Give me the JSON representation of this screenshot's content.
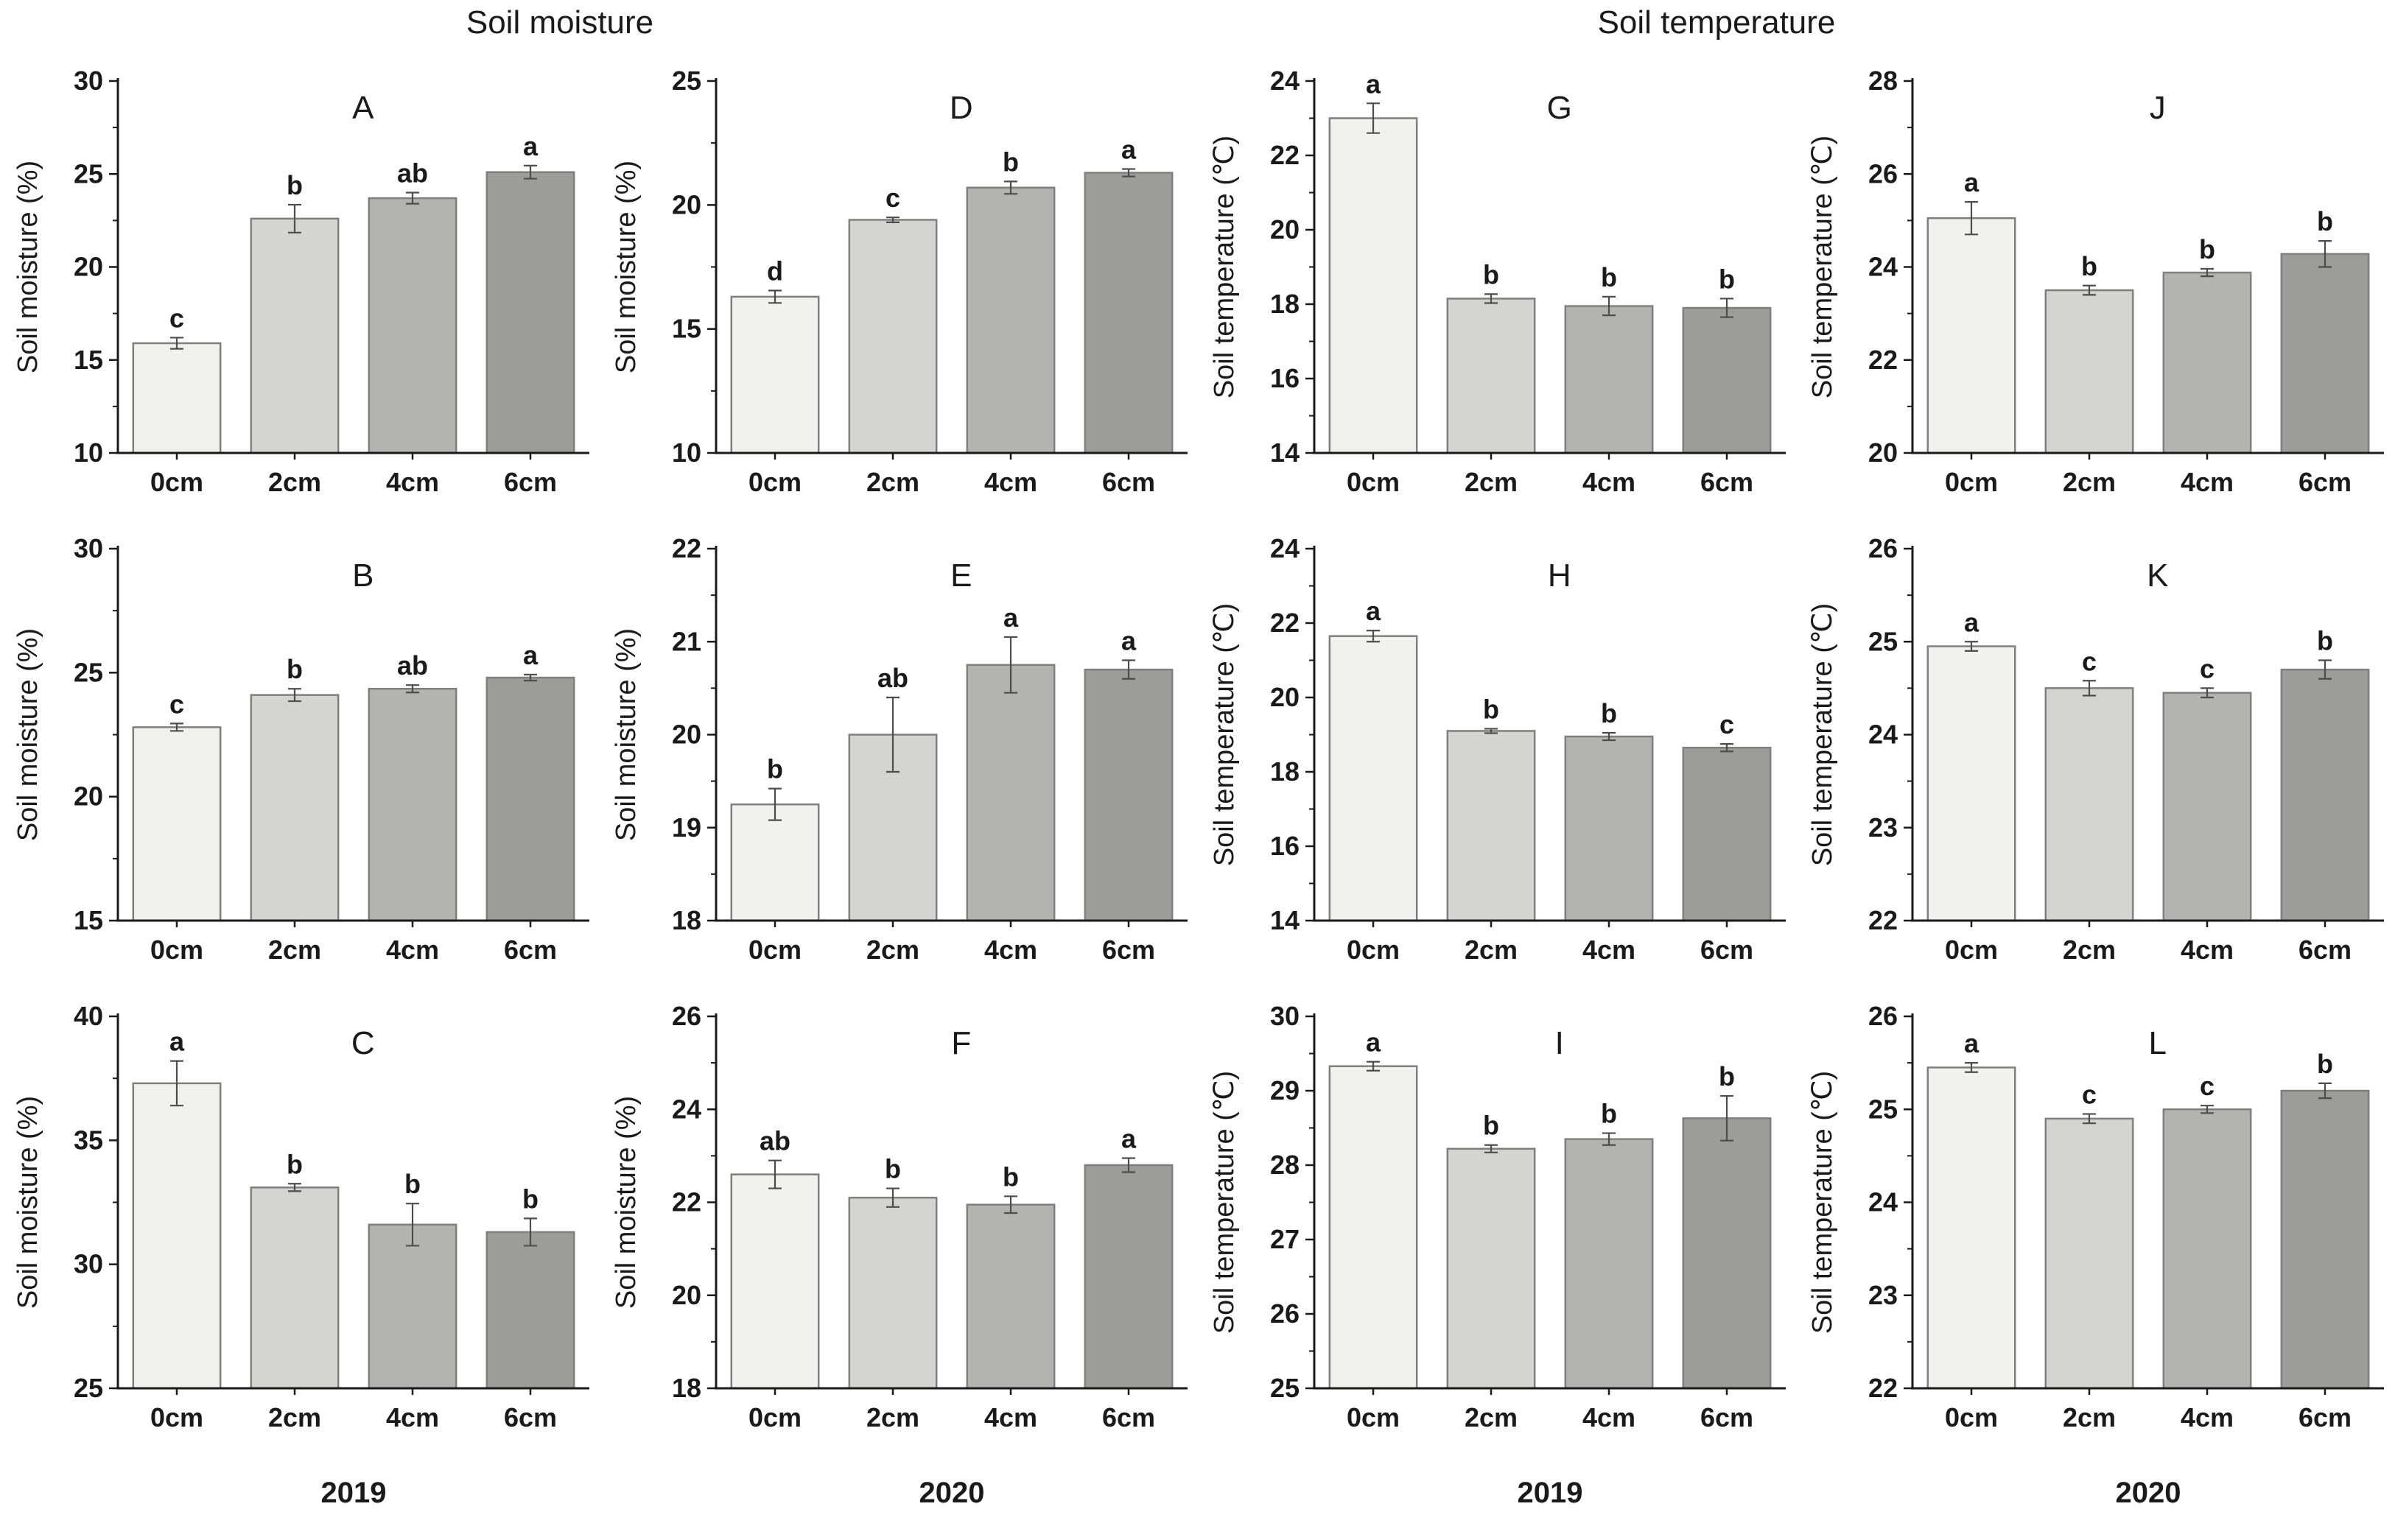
{
  "figure": {
    "column_titles": [
      "Soil moisture",
      "Soil temperature"
    ]
  },
  "style": {
    "bar_fills": [
      "#f1f1ef",
      "#d4d4d2",
      "#b3b3b1",
      "#9c9c9a"
    ],
    "bar_stroke": "#7f7f7f",
    "error_color": "#4d4d4d",
    "axis_color": "#1a1a1a",
    "text_color": "#1a1a1a"
  },
  "chart_data": [
    {
      "type": "bar",
      "panel": "A",
      "ylabel": "Soil moisture (%)",
      "categories": [
        "0cm",
        "2cm",
        "4cm",
        "6cm"
      ],
      "values": [
        15.9,
        22.6,
        23.7,
        25.1
      ],
      "errors": [
        0.3,
        0.75,
        0.3,
        0.35
      ],
      "letters": [
        "c",
        "b",
        "ab",
        "a"
      ],
      "ylim": [
        10,
        30
      ],
      "ytick_step": 5,
      "yminor_step": 2.5,
      "x_group_label": "",
      "grid": {
        "row": 0,
        "col": 0
      }
    },
    {
      "type": "bar",
      "panel": "D",
      "ylabel": "Soil moisture (%)",
      "categories": [
        "0cm",
        "2cm",
        "4cm",
        "6cm"
      ],
      "values": [
        16.3,
        19.4,
        20.7,
        21.3
      ],
      "errors": [
        0.25,
        0.1,
        0.25,
        0.15
      ],
      "letters": [
        "d",
        "c",
        "b",
        "a"
      ],
      "ylim": [
        10,
        25
      ],
      "ytick_step": 5,
      "yminor_step": 2.5,
      "x_group_label": "",
      "grid": {
        "row": 0,
        "col": 1
      }
    },
    {
      "type": "bar",
      "panel": "G",
      "ylabel": "Soil temperature (℃)",
      "categories": [
        "0cm",
        "2cm",
        "4cm",
        "6cm"
      ],
      "values": [
        23.0,
        18.15,
        17.95,
        17.9
      ],
      "errors": [
        0.4,
        0.12,
        0.25,
        0.25
      ],
      "letters": [
        "a",
        "b",
        "b",
        "b"
      ],
      "ylim": [
        14,
        24
      ],
      "ytick_step": 2,
      "yminor_step": 1,
      "x_group_label": "",
      "grid": {
        "row": 0,
        "col": 2
      }
    },
    {
      "type": "bar",
      "panel": "J",
      "ylabel": "Soil temperature (℃)",
      "categories": [
        "0cm",
        "2cm",
        "4cm",
        "6cm"
      ],
      "values": [
        25.05,
        23.5,
        23.88,
        24.28
      ],
      "errors": [
        0.35,
        0.1,
        0.08,
        0.28
      ],
      "letters": [
        "a",
        "b",
        "b",
        "b"
      ],
      "ylim": [
        20,
        28
      ],
      "ytick_step": 2,
      "yminor_step": 1,
      "x_group_label": "",
      "grid": {
        "row": 0,
        "col": 3
      }
    },
    {
      "type": "bar",
      "panel": "B",
      "ylabel": "Soil moisture (%)",
      "categories": [
        "0cm",
        "2cm",
        "4cm",
        "6cm"
      ],
      "values": [
        22.8,
        24.1,
        24.35,
        24.8
      ],
      "errors": [
        0.15,
        0.25,
        0.15,
        0.12
      ],
      "letters": [
        "c",
        "b",
        "ab",
        "a"
      ],
      "ylim": [
        15,
        30
      ],
      "ytick_step": 5,
      "yminor_step": 2.5,
      "x_group_label": "",
      "grid": {
        "row": 1,
        "col": 0
      }
    },
    {
      "type": "bar",
      "panel": "E",
      "ylabel": "Soil moisture (%)",
      "categories": [
        "0cm",
        "2cm",
        "4cm",
        "6cm"
      ],
      "values": [
        19.25,
        20.0,
        20.75,
        20.7
      ],
      "errors": [
        0.17,
        0.4,
        0.3,
        0.1
      ],
      "letters": [
        "b",
        "ab",
        "a",
        "a"
      ],
      "ylim": [
        18,
        22
      ],
      "ytick_step": 1,
      "yminor_step": 0.5,
      "x_group_label": "",
      "grid": {
        "row": 1,
        "col": 1
      }
    },
    {
      "type": "bar",
      "panel": "H",
      "ylabel": "Soil temperature (℃)",
      "categories": [
        "0cm",
        "2cm",
        "4cm",
        "6cm"
      ],
      "values": [
        21.65,
        19.1,
        18.95,
        18.65
      ],
      "errors": [
        0.15,
        0.06,
        0.1,
        0.1
      ],
      "letters": [
        "a",
        "b",
        "b",
        "c"
      ],
      "ylim": [
        14,
        24
      ],
      "ytick_step": 2,
      "yminor_step": 1,
      "x_group_label": "",
      "grid": {
        "row": 1,
        "col": 2
      }
    },
    {
      "type": "bar",
      "panel": "K",
      "ylabel": "Soil temperature (℃)",
      "categories": [
        "0cm",
        "2cm",
        "4cm",
        "6cm"
      ],
      "values": [
        24.95,
        24.5,
        24.45,
        24.7
      ],
      "errors": [
        0.05,
        0.08,
        0.05,
        0.1
      ],
      "letters": [
        "a",
        "c",
        "c",
        "b"
      ],
      "ylim": [
        22,
        26
      ],
      "ytick_step": 1,
      "yminor_step": 0.5,
      "x_group_label": "",
      "grid": {
        "row": 1,
        "col": 3
      }
    },
    {
      "type": "bar",
      "panel": "C",
      "ylabel": "Soil moisture (%)",
      "categories": [
        "0cm",
        "2cm",
        "4cm",
        "6cm"
      ],
      "values": [
        37.3,
        33.1,
        31.6,
        31.3
      ],
      "errors": [
        0.9,
        0.15,
        0.85,
        0.55
      ],
      "letters": [
        "a",
        "b",
        "b",
        "b"
      ],
      "ylim": [
        25,
        40
      ],
      "ytick_step": 5,
      "yminor_step": 2.5,
      "x_group_label": "2019",
      "grid": {
        "row": 2,
        "col": 0
      }
    },
    {
      "type": "bar",
      "panel": "F",
      "ylabel": "Soil moisture (%)",
      "categories": [
        "0cm",
        "2cm",
        "4cm",
        "6cm"
      ],
      "values": [
        22.6,
        22.1,
        21.95,
        22.8
      ],
      "errors": [
        0.3,
        0.2,
        0.18,
        0.15
      ],
      "letters": [
        "ab",
        "b",
        "b",
        "a"
      ],
      "ylim": [
        18,
        26
      ],
      "ytick_step": 2,
      "yminor_step": 1,
      "x_group_label": "2020",
      "grid": {
        "row": 2,
        "col": 1
      }
    },
    {
      "type": "bar",
      "panel": "I",
      "ylabel": "Soil temperature (℃)",
      "categories": [
        "0cm",
        "2cm",
        "4cm",
        "6cm"
      ],
      "values": [
        29.33,
        28.22,
        28.35,
        28.63
      ],
      "errors": [
        0.06,
        0.05,
        0.08,
        0.3
      ],
      "letters": [
        "a",
        "b",
        "b",
        "b"
      ],
      "ylim": [
        25,
        30
      ],
      "ytick_step": 1,
      "yminor_step": 0.5,
      "x_group_label": "2019",
      "grid": {
        "row": 2,
        "col": 2
      }
    },
    {
      "type": "bar",
      "panel": "L",
      "ylabel": "Soil temperature (℃)",
      "categories": [
        "0cm",
        "2cm",
        "4cm",
        "6cm"
      ],
      "values": [
        25.45,
        24.9,
        25.0,
        25.2
      ],
      "errors": [
        0.05,
        0.05,
        0.04,
        0.08
      ],
      "letters": [
        "a",
        "c",
        "c",
        "b"
      ],
      "ylim": [
        22,
        26
      ],
      "ytick_step": 1,
      "yminor_step": 0.5,
      "x_group_label": "2020",
      "grid": {
        "row": 2,
        "col": 3
      }
    }
  ]
}
